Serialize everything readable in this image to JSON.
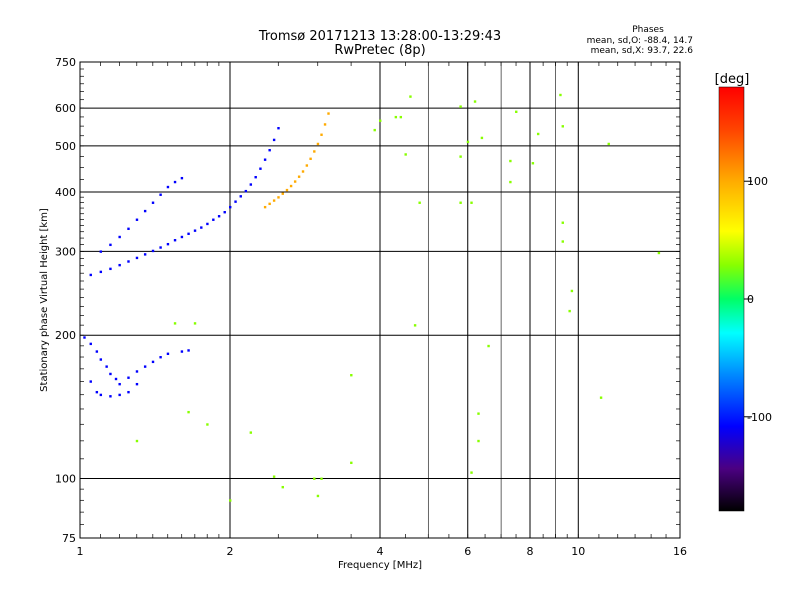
{
  "chart_data": {
    "type": "scatter",
    "title": "Tromsø 20171213 13:28:00-13:29:43",
    "subtitle": "RwPretec (8p)",
    "xlabel": "Frequency [MHz]",
    "ylabel": "Stationary phase Virtual Height [km]",
    "x_scale": "log",
    "y_scale": "log",
    "xlim": [
      1,
      16
    ],
    "ylim": [
      75,
      750
    ],
    "x_ticks": [
      1,
      2,
      4,
      6,
      8,
      10,
      16
    ],
    "x_tick_labels": [
      "1",
      "2",
      "4",
      "6",
      "8",
      "10",
      "16"
    ],
    "x_grid": [
      2,
      4,
      6,
      8,
      10
    ],
    "x_minor_grid": [
      5,
      7,
      9
    ],
    "y_ticks": [
      75,
      100,
      200,
      300,
      400,
      500,
      600,
      750
    ],
    "y_tick_labels": [
      "75",
      "100",
      "200",
      "300",
      "400",
      "500",
      "600",
      "750"
    ],
    "grid": true,
    "phases": {
      "heading": "Phases",
      "line_o": "mean, sd,O: -88.4, 14.7",
      "line_x": "mean, sd,X:  93.7, 22.6"
    },
    "colorbar": {
      "label": "[deg]",
      "range": [
        -180,
        180
      ],
      "ticks": [
        100,
        0,
        -100
      ],
      "tick_labels": [
        "100",
        "0",
        "-100"
      ],
      "colormap": [
        "#000000",
        "#4b0082",
        "#0000ff",
        "#0088ff",
        "#00ffff",
        "#00ff66",
        "#88ff00",
        "#ffff00",
        "#ffaa00",
        "#ff4400",
        "#ff0000"
      ]
    },
    "traces": [
      {
        "desc": "F-layer O trace low branch",
        "points": [
          [
            1.05,
            268
          ],
          [
            1.1,
            272
          ],
          [
            1.15,
            276
          ],
          [
            1.2,
            281
          ],
          [
            1.25,
            286
          ],
          [
            1.3,
            291
          ],
          [
            1.35,
            296
          ],
          [
            1.4,
            301
          ],
          [
            1.45,
            306
          ],
          [
            1.5,
            311
          ],
          [
            1.55,
            317
          ],
          [
            1.6,
            322
          ],
          [
            1.65,
            327
          ],
          [
            1.7,
            332
          ],
          [
            1.75,
            337
          ],
          [
            1.8,
            343
          ],
          [
            1.85,
            350
          ],
          [
            1.9,
            356
          ],
          [
            1.95,
            363
          ],
          [
            2.0,
            372
          ],
          [
            2.05,
            382
          ],
          [
            2.1,
            392
          ],
          [
            2.15,
            402
          ],
          [
            2.2,
            415
          ],
          [
            2.25,
            430
          ],
          [
            2.3,
            448
          ],
          [
            2.35,
            468
          ],
          [
            2.4,
            490
          ],
          [
            2.45,
            515
          ],
          [
            2.5,
            545
          ]
        ],
        "phase": -110
      },
      {
        "desc": "F-layer O trace upper branch",
        "points": [
          [
            1.1,
            300
          ],
          [
            1.15,
            310
          ],
          [
            1.2,
            322
          ],
          [
            1.25,
            335
          ],
          [
            1.3,
            350
          ],
          [
            1.35,
            365
          ],
          [
            1.4,
            380
          ],
          [
            1.45,
            395
          ],
          [
            1.5,
            410
          ],
          [
            1.55,
            420
          ],
          [
            1.6,
            428
          ]
        ],
        "phase": -105
      },
      {
        "desc": "F-layer X trace",
        "points": [
          [
            2.35,
            372
          ],
          [
            2.4,
            378
          ],
          [
            2.45,
            384
          ],
          [
            2.5,
            390
          ],
          [
            2.55,
            397
          ],
          [
            2.6,
            404
          ],
          [
            2.65,
            412
          ],
          [
            2.7,
            421
          ],
          [
            2.75,
            431
          ],
          [
            2.8,
            442
          ],
          [
            2.85,
            455
          ],
          [
            2.9,
            470
          ],
          [
            2.95,
            487
          ],
          [
            3.0,
            505
          ],
          [
            3.05,
            528
          ],
          [
            3.1,
            555
          ],
          [
            3.15,
            585
          ]
        ],
        "phase": 95
      },
      {
        "desc": "E-layer echo cloud",
        "points": [
          [
            1.02,
            198
          ],
          [
            1.05,
            192
          ],
          [
            1.08,
            185
          ],
          [
            1.1,
            178
          ],
          [
            1.13,
            172
          ],
          [
            1.15,
            166
          ],
          [
            1.18,
            162
          ],
          [
            1.2,
            158
          ],
          [
            1.25,
            163
          ],
          [
            1.3,
            168
          ],
          [
            1.35,
            172
          ],
          [
            1.4,
            176
          ],
          [
            1.45,
            180
          ],
          [
            1.5,
            183
          ],
          [
            1.6,
            185
          ],
          [
            1.65,
            186
          ],
          [
            1.05,
            160
          ],
          [
            1.08,
            152
          ],
          [
            1.1,
            150
          ],
          [
            1.15,
            149
          ],
          [
            1.2,
            150
          ],
          [
            1.25,
            152
          ],
          [
            1.3,
            158
          ]
        ],
        "phase": -100
      },
      {
        "desc": "scattered points",
        "points": [
          [
            1.3,
            120
          ],
          [
            1.65,
            138
          ],
          [
            1.55,
            212
          ],
          [
            1.7,
            212
          ],
          [
            1.8,
            130
          ],
          [
            2.0,
            90
          ],
          [
            2.2,
            125
          ],
          [
            2.45,
            101
          ],
          [
            2.55,
            96
          ],
          [
            2.95,
            100
          ],
          [
            3.05,
            100
          ],
          [
            3.0,
            92
          ],
          [
            3.5,
            108
          ],
          [
            3.5,
            165
          ],
          [
            3.9,
            540
          ],
          [
            4.0,
            565
          ],
          [
            4.3,
            575
          ],
          [
            4.4,
            575
          ],
          [
            4.5,
            480
          ],
          [
            4.7,
            210
          ],
          [
            4.8,
            380
          ],
          [
            4.6,
            635
          ],
          [
            5.8,
            475
          ],
          [
            5.8,
            605
          ],
          [
            6.0,
            510
          ],
          [
            6.1,
            380
          ],
          [
            6.1,
            103
          ],
          [
            6.3,
            120
          ],
          [
            6.3,
            137
          ],
          [
            6.4,
            520
          ],
          [
            6.6,
            190
          ],
          [
            7.3,
            465
          ],
          [
            7.3,
            420
          ],
          [
            7.5,
            590
          ],
          [
            8.1,
            460
          ],
          [
            8.3,
            530
          ],
          [
            9.2,
            640
          ],
          [
            9.3,
            550
          ],
          [
            9.3,
            345
          ],
          [
            9.3,
            315
          ],
          [
            9.7,
            248
          ],
          [
            9.6,
            225
          ],
          [
            11.1,
            148
          ],
          [
            11.5,
            505
          ],
          [
            14.5,
            298
          ],
          [
            6.2,
            620
          ],
          [
            5.8,
            380
          ]
        ],
        "phase": 30
      }
    ]
  }
}
